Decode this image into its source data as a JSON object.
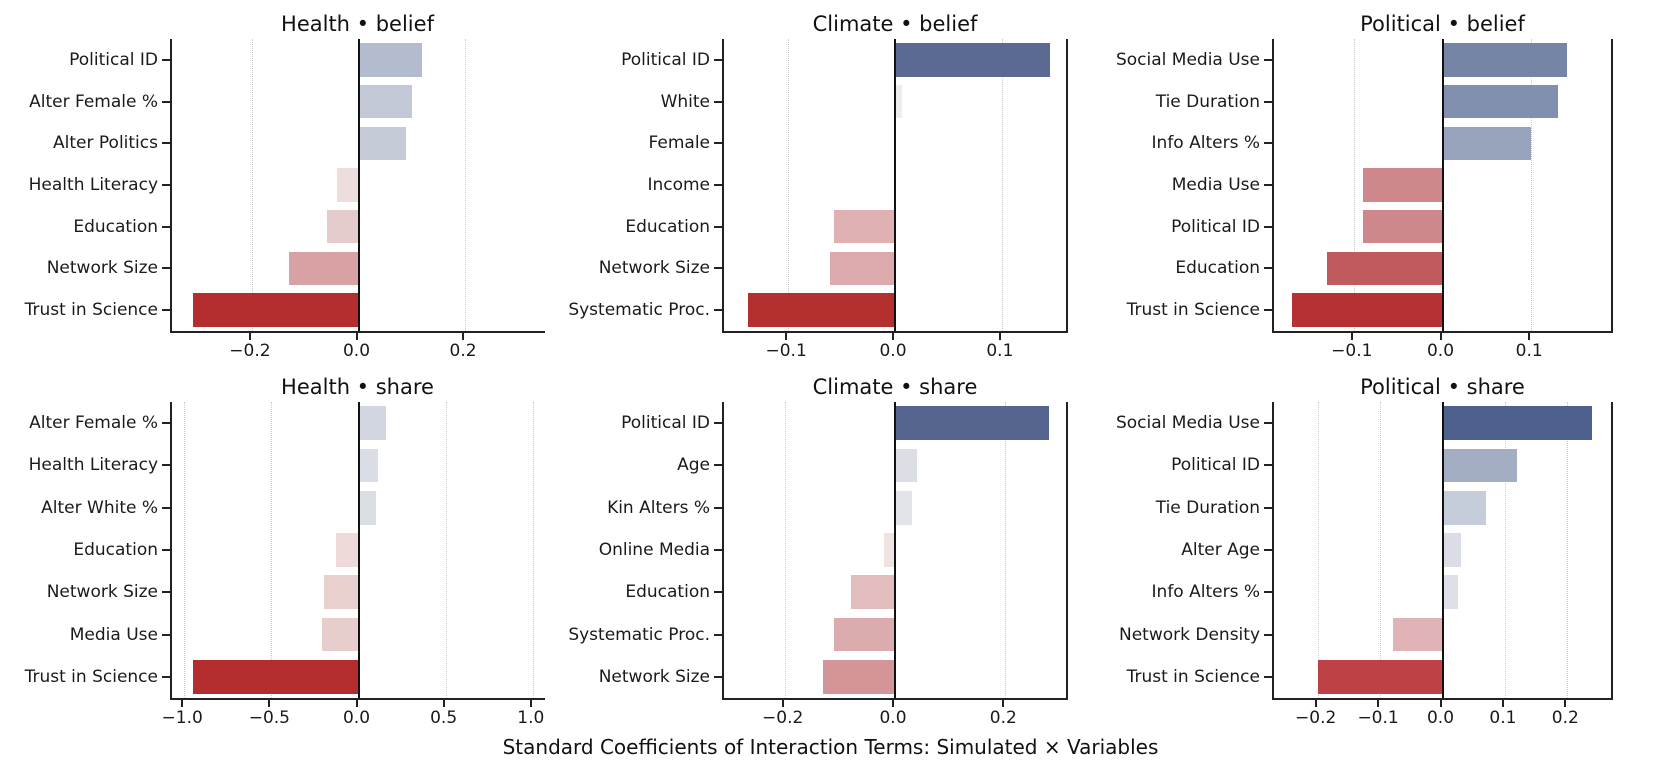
{
  "figure": {
    "xlabel": "Standard Coefficients of Interaction Terms: Simulated × Variables",
    "background": "#ffffff",
    "spine_color": "#222222",
    "grid_color": "#c9c9c9",
    "zero_line_color": "#111111",
    "accent_negative": "#b32c2e",
    "accent_positive": "#4e618e"
  },
  "chart_data": [
    {
      "type": "bar",
      "orientation": "horizontal",
      "title": "Health • belief",
      "row": 0,
      "col": 0,
      "xlim": [
        -0.35,
        0.35
      ],
      "xticks": [
        -0.2,
        0.0,
        0.2
      ],
      "xtick_labels": [
        "−0.2",
        "0.0",
        "0.2"
      ],
      "right_spine": false,
      "categories": [
        "Political ID",
        "Alter Female %",
        "Alter Politics",
        "Health Literacy",
        "Education",
        "Network Size",
        "Trust in Science"
      ],
      "values": [
        0.12,
        0.1,
        0.09,
        -0.04,
        -0.06,
        -0.13,
        -0.31
      ],
      "colors": [
        "#b3bcce",
        "#c2c8d6",
        "#c6cbd8",
        "#eddedd",
        "#e5cccc",
        "#d8a2a4",
        "#b42e30"
      ]
    },
    {
      "type": "bar",
      "orientation": "horizontal",
      "title": "Climate • belief",
      "row": 0,
      "col": 1,
      "xlim": [
        -0.16,
        0.16
      ],
      "xticks": [
        -0.1,
        0.0,
        0.1
      ],
      "xtick_labels": [
        "−0.1",
        "0.0",
        "0.1"
      ],
      "right_spine": true,
      "categories": [
        "Political ID",
        "White",
        "Female",
        "Income",
        "Education",
        "Network Size",
        "Systematic Proc."
      ],
      "values": [
        0.145,
        0.007,
        0.0,
        0.0,
        -0.057,
        -0.061,
        -0.138
      ],
      "colors": [
        "#5a6a93",
        "#ededee",
        "#f7f7f7",
        "#f7f7f7",
        "#dfb1b2",
        "#dcaaac",
        "#b4302f"
      ]
    },
    {
      "type": "bar",
      "orientation": "horizontal",
      "title": "Political • belief",
      "row": 0,
      "col": 2,
      "xlim": [
        -0.19,
        0.19
      ],
      "xticks": [
        -0.1,
        0.0,
        0.1
      ],
      "xtick_labels": [
        "−0.1",
        "0.0",
        "0.1"
      ],
      "right_spine": true,
      "categories": [
        "Social Media Use",
        "Tie Duration",
        "Info Alters %",
        "Media Use",
        "Political ID",
        "Education",
        "Trust in Science"
      ],
      "values": [
        0.14,
        0.13,
        0.1,
        -0.09,
        -0.09,
        -0.13,
        -0.17
      ],
      "colors": [
        "#7585a6",
        "#8090ae",
        "#98a3bc",
        "#ce878b",
        "#ce878b",
        "#c05a5e",
        "#b53133"
      ]
    },
    {
      "type": "bar",
      "orientation": "horizontal",
      "title": "Health • share",
      "row": 1,
      "col": 0,
      "xlim": [
        -1.07,
        1.07
      ],
      "xticks": [
        -1.0,
        -0.5,
        0.0,
        0.5,
        1.0
      ],
      "xtick_labels": [
        "−1.0",
        "−0.5",
        "0.0",
        "0.5",
        "1.0"
      ],
      "right_spine": false,
      "categories": [
        "Alter Female %",
        "Health Literacy",
        "Alter White %",
        "Education",
        "Network Size",
        "Media Use",
        "Trust in Science"
      ],
      "values": [
        0.16,
        0.11,
        0.1,
        -0.13,
        -0.2,
        -0.21,
        -0.95
      ],
      "colors": [
        "#d2d6e0",
        "#dadde5",
        "#dcdee5",
        "#eddad9",
        "#e8d0ce",
        "#e7cecc",
        "#b32c2e"
      ]
    },
    {
      "type": "bar",
      "orientation": "horizontal",
      "title": "Climate • share",
      "row": 1,
      "col": 1,
      "xlim": [
        -0.31,
        0.31
      ],
      "xticks": [
        -0.2,
        0.0,
        0.2
      ],
      "xtick_labels": [
        "−0.2",
        "0.0",
        "0.2"
      ],
      "right_spine": true,
      "categories": [
        "Political ID",
        "Age",
        "Kin Alters %",
        "Online Media",
        "Education",
        "Systematic Proc.",
        "Network Size"
      ],
      "values": [
        0.28,
        0.04,
        0.03,
        -0.02,
        -0.08,
        -0.11,
        -0.13
      ],
      "colors": [
        "#55648f",
        "#dbdee4",
        "#e3e4e9",
        "#f0e4e3",
        "#e3bcbd",
        "#dcabad",
        "#d49598"
      ]
    },
    {
      "type": "bar",
      "orientation": "horizontal",
      "title": "Political • share",
      "row": 1,
      "col": 2,
      "xlim": [
        -0.27,
        0.27
      ],
      "xticks": [
        -0.2,
        -0.1,
        0.0,
        0.1,
        0.2
      ],
      "xtick_labels": [
        "−0.2",
        "−0.1",
        "0.0",
        "0.1",
        "0.2"
      ],
      "right_spine": true,
      "categories": [
        "Social Media Use",
        "Political ID",
        "Tie Duration",
        "Alter Age",
        "Info Alters %",
        "Network Density",
        "Trust in Science"
      ],
      "values": [
        0.24,
        0.12,
        0.07,
        0.03,
        0.025,
        -0.08,
        -0.2
      ],
      "colors": [
        "#4e618e",
        "#a3aec5",
        "#c5ccda",
        "#dadde5",
        "#dee0e7",
        "#e0b4b6",
        "#be4145"
      ]
    }
  ]
}
